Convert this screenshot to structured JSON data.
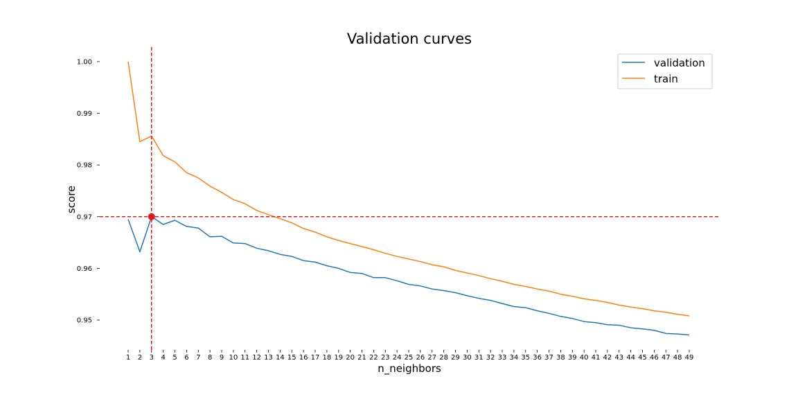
{
  "chart_data": {
    "type": "line",
    "title": "Validation curves",
    "xlabel": "n_neighbors",
    "ylabel": "score",
    "x": [
      1,
      2,
      3,
      4,
      5,
      6,
      7,
      8,
      9,
      10,
      11,
      12,
      13,
      14,
      15,
      16,
      17,
      18,
      19,
      20,
      21,
      22,
      23,
      24,
      25,
      26,
      27,
      28,
      29,
      30,
      31,
      32,
      33,
      34,
      35,
      36,
      37,
      38,
      39,
      40,
      41,
      42,
      43,
      44,
      45,
      46,
      47,
      48,
      49
    ],
    "xticks": [
      "1",
      "2",
      "3",
      "4",
      "5",
      "6",
      "7",
      "8",
      "9",
      "10",
      "11",
      "12",
      "13",
      "14",
      "15",
      "16",
      "17",
      "18",
      "19",
      "20",
      "21",
      "22",
      "23",
      "24",
      "25",
      "26",
      "27",
      "28",
      "29",
      "30",
      "31",
      "32",
      "33",
      "34",
      "35",
      "36",
      "37",
      "38",
      "39",
      "40",
      "41",
      "42",
      "43",
      "44",
      "45",
      "46",
      "47",
      "48",
      "49"
    ],
    "yticks": [
      "1.00",
      "0.99",
      "0.98",
      "0.97",
      "0.96",
      "0.95"
    ],
    "ytick_values": [
      1.0,
      0.99,
      0.98,
      0.97,
      0.96,
      0.95
    ],
    "xlim": [
      1,
      49
    ],
    "ylim": [
      0.9452,
      1.0027
    ],
    "grid": false,
    "legend_position": "top-right",
    "series": [
      {
        "name": "validation",
        "color": "#1f77b4",
        "values": [
          0.9695,
          0.9632,
          0.97,
          0.9685,
          0.9693,
          0.9681,
          0.9678,
          0.9661,
          0.9662,
          0.9649,
          0.9648,
          0.9639,
          0.9634,
          0.9627,
          0.9623,
          0.9615,
          0.9612,
          0.9605,
          0.96,
          0.9592,
          0.959,
          0.9582,
          0.9582,
          0.9576,
          0.9569,
          0.9566,
          0.956,
          0.9557,
          0.9553,
          0.9547,
          0.9542,
          0.9538,
          0.9532,
          0.9526,
          0.9524,
          0.9518,
          0.9513,
          0.9507,
          0.9503,
          0.9497,
          0.9495,
          0.9491,
          0.949,
          0.9485,
          0.9483,
          0.948,
          0.9474,
          0.9473,
          0.9471
        ]
      },
      {
        "name": "train",
        "color": "#ff7f0e",
        "values": [
          1.0,
          0.9845,
          0.9856,
          0.9818,
          0.9806,
          0.9785,
          0.9775,
          0.9759,
          0.9747,
          0.9733,
          0.9725,
          0.9712,
          0.9704,
          0.9696,
          0.9688,
          0.9677,
          0.967,
          0.9661,
          0.9654,
          0.9648,
          0.9642,
          0.9636,
          0.9629,
          0.9623,
          0.9618,
          0.9613,
          0.9607,
          0.9603,
          0.9596,
          0.9591,
          0.9586,
          0.958,
          0.9575,
          0.9569,
          0.9565,
          0.956,
          0.9556,
          0.955,
          0.9546,
          0.9541,
          0.9538,
          0.9534,
          0.9529,
          0.9525,
          0.9522,
          0.9518,
          0.9515,
          0.9511,
          0.9508
        ]
      }
    ],
    "reference_lines": {
      "color": "#e31a1c",
      "style": "dashed",
      "vertical_x": 3,
      "horizontal_y": 0.97
    },
    "highlight_point": {
      "x": 3,
      "y": 0.97,
      "color": "#e31a1c"
    }
  }
}
